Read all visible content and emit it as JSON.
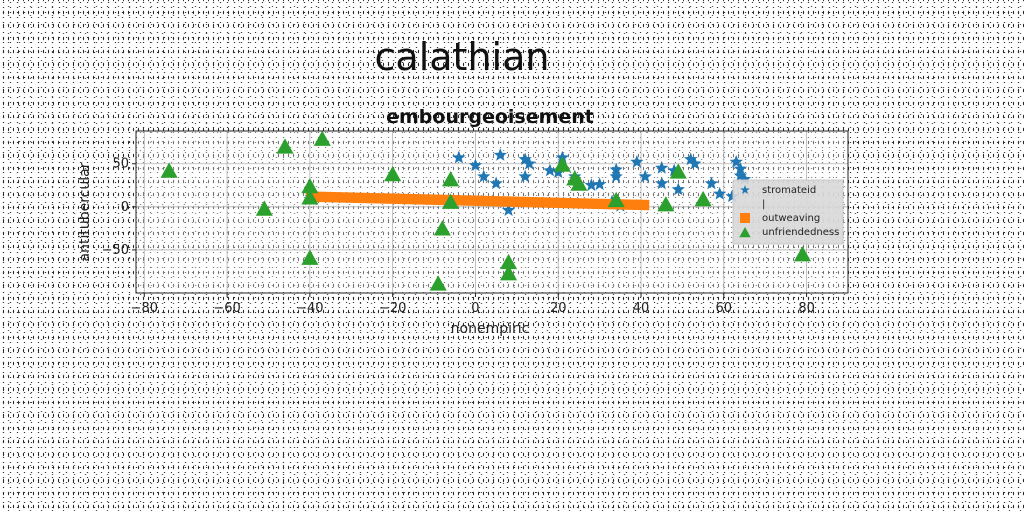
{
  "chart_data": {
    "type": "scatter",
    "suptitle": "calathian",
    "title": "embourgeoisement",
    "xlabel": "nonempiric",
    "ylabel": "antitubercular",
    "xlim": [
      -82,
      90
    ],
    "ylim": [
      -100,
      88
    ],
    "xticks": [
      -80,
      -60,
      -40,
      -20,
      0,
      20,
      40,
      60,
      80
    ],
    "yticks": [
      -50,
      0,
      50
    ],
    "grid": true,
    "legend_position": "right",
    "colors": {
      "stromateid": "#1f77b4",
      "outweaving": "#ff7f0e",
      "unfriendedness": "#2ca02c"
    },
    "series": [
      {
        "name": "stromateid",
        "marker": "star",
        "color": "#1f77b4",
        "points": [
          [
            -4,
            57
          ],
          [
            0,
            48
          ],
          [
            2,
            35
          ],
          [
            5,
            27
          ],
          [
            6,
            60
          ],
          [
            8,
            -4
          ],
          [
            12,
            55
          ],
          [
            13,
            50
          ],
          [
            12,
            35
          ],
          [
            18,
            42
          ],
          [
            20,
            40
          ],
          [
            21,
            57
          ],
          [
            24,
            35
          ],
          [
            28,
            25
          ],
          [
            30,
            26
          ],
          [
            34,
            43
          ],
          [
            34,
            35
          ],
          [
            39,
            52
          ],
          [
            41,
            35
          ],
          [
            45,
            45
          ],
          [
            45,
            27
          ],
          [
            48,
            42
          ],
          [
            49,
            20
          ],
          [
            52,
            55
          ],
          [
            53,
            50
          ],
          [
            57,
            27
          ],
          [
            59,
            15
          ],
          [
            62,
            12
          ],
          [
            63,
            52
          ],
          [
            64,
            44
          ],
          [
            64,
            36
          ],
          [
            65,
            32
          ],
          [
            33,
            6
          ],
          [
            35,
            1
          ]
        ]
      },
      {
        "name": "outweaving",
        "marker": "square",
        "color": "#ff7f0e",
        "points": [
          [
            -41,
            18
          ],
          [
            42,
            8
          ],
          [
            42,
            -4
          ],
          [
            -41,
            6
          ]
        ]
      },
      {
        "name": "unfriendedness",
        "marker": "triangle",
        "color": "#2ca02c",
        "points": [
          [
            -74,
            41
          ],
          [
            -51,
            -3
          ],
          [
            -46,
            69
          ],
          [
            -40,
            10
          ],
          [
            -40,
            23
          ],
          [
            -40,
            -60
          ],
          [
            -37,
            78
          ],
          [
            -20,
            37
          ],
          [
            -9,
            -90
          ],
          [
            -8,
            -26
          ],
          [
            -6,
            31
          ],
          [
            -6,
            5
          ],
          [
            8,
            -65
          ],
          [
            8,
            -78
          ],
          [
            21,
            48
          ],
          [
            24,
            32
          ],
          [
            25,
            26
          ],
          [
            34,
            7
          ],
          [
            46,
            2
          ],
          [
            49,
            40
          ],
          [
            55,
            8
          ],
          [
            79,
            -56
          ]
        ]
      }
    ],
    "legend": [
      {
        "label": "stromateid",
        "marker": "star"
      },
      {
        "label": "|",
        "marker": "none"
      },
      {
        "label": "outweaving",
        "marker": "square"
      },
      {
        "label": "unfriendedness",
        "marker": "triangle"
      }
    ]
  }
}
